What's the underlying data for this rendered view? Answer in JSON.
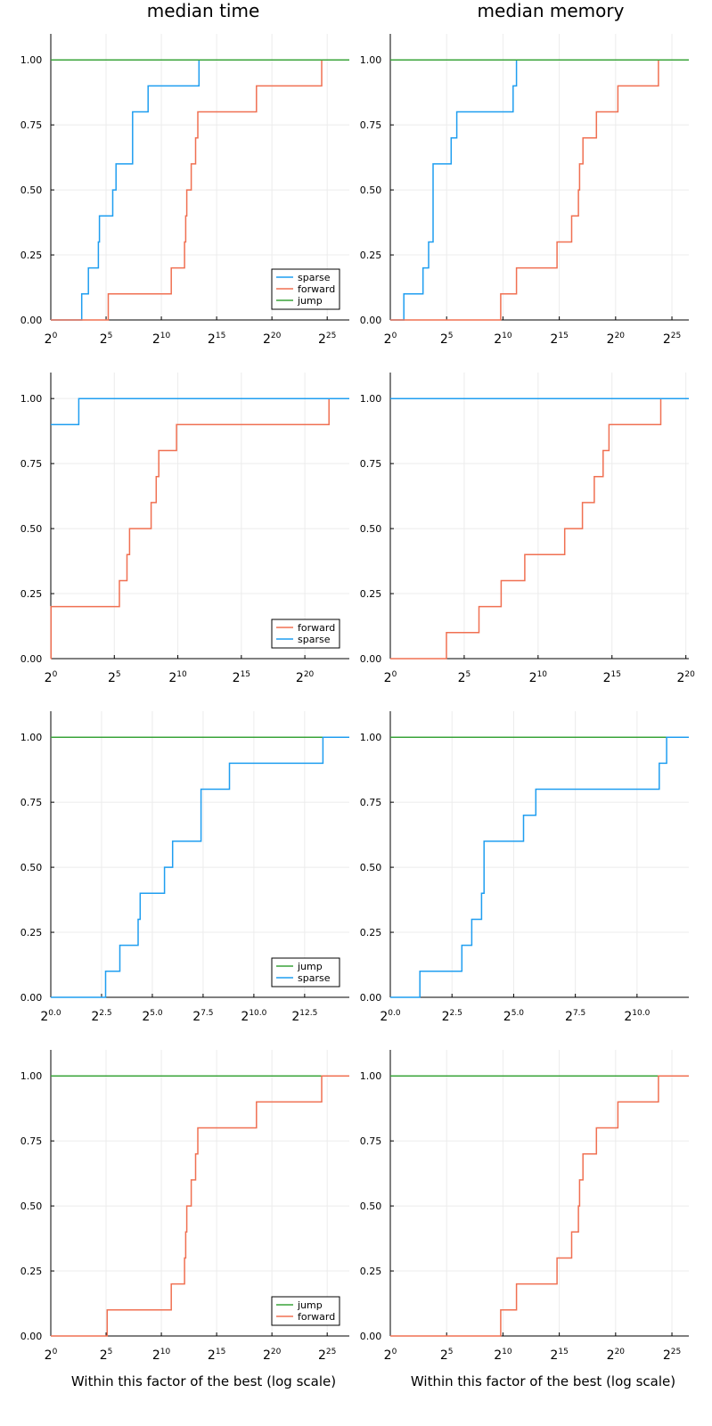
{
  "titles": [
    "median time",
    "median memory"
  ],
  "xlabel": "Within this factor of the best (log scale)",
  "colors": {
    "sparse": "#1f9ef0",
    "forward": "#f07052",
    "jump": "#3aa43a"
  },
  "chart_data": [
    {
      "type": "line",
      "title": "median time",
      "xlabel": "",
      "row": 0,
      "col": 0,
      "xscale": "log2",
      "xlim_exp": [
        0,
        27
      ],
      "ylim": [
        0,
        1.1
      ],
      "xticks_exp": [
        0,
        5,
        10,
        15,
        20,
        25
      ],
      "xtick_labels": [
        "0",
        "5",
        "10",
        "15",
        "20",
        "25"
      ],
      "yticks": [
        0,
        0.25,
        0.5,
        0.75,
        1.0
      ],
      "ytick_labels": [
        "0.00",
        "0.25",
        "0.50",
        "0.75",
        "1.00"
      ],
      "legend": {
        "position": "bottom-right",
        "entries": [
          "sparse",
          "forward",
          "jump"
        ]
      },
      "series": [
        {
          "name": "sparse",
          "color": "sparse",
          "steps": [
            [
              0,
              0
            ],
            [
              2.8,
              0.1
            ],
            [
              3.4,
              0.2
            ],
            [
              4.3,
              0.3
            ],
            [
              4.4,
              0.4
            ],
            [
              5.6,
              0.5
            ],
            [
              5.9,
              0.6
            ],
            [
              7.4,
              0.8
            ],
            [
              8.8,
              0.9
            ],
            [
              13.4,
              1.0
            ],
            [
              27,
              1.0
            ]
          ]
        },
        {
          "name": "forward",
          "color": "forward",
          "steps": [
            [
              0,
              0
            ],
            [
              5.2,
              0.1
            ],
            [
              10.9,
              0.2
            ],
            [
              12.1,
              0.3
            ],
            [
              12.2,
              0.4
            ],
            [
              12.3,
              0.5
            ],
            [
              12.7,
              0.6
            ],
            [
              13.1,
              0.7
            ],
            [
              13.3,
              0.8
            ],
            [
              18.6,
              0.9
            ],
            [
              24.5,
              1.0
            ],
            [
              27,
              1.0
            ]
          ]
        },
        {
          "name": "jump",
          "color": "jump",
          "steps": [
            [
              0,
              1.0
            ],
            [
              27,
              1.0
            ]
          ]
        }
      ]
    },
    {
      "type": "line",
      "title": "median memory",
      "xlabel": "",
      "row": 0,
      "col": 1,
      "xscale": "log2",
      "xlim_exp": [
        0,
        26.5
      ],
      "ylim": [
        0,
        1.1
      ],
      "xticks_exp": [
        0,
        5,
        10,
        15,
        20,
        25
      ],
      "xtick_labels": [
        "0",
        "5",
        "10",
        "15",
        "20",
        "25"
      ],
      "yticks": [
        0,
        0.25,
        0.5,
        0.75,
        1.0
      ],
      "ytick_labels": [
        "0.00",
        "0.25",
        "0.50",
        "0.75",
        "1.00"
      ],
      "series": [
        {
          "name": "sparse",
          "color": "sparse",
          "steps": [
            [
              0,
              0
            ],
            [
              1.2,
              0.1
            ],
            [
              2.9,
              0.2
            ],
            [
              3.4,
              0.3
            ],
            [
              3.8,
              0.6
            ],
            [
              5.4,
              0.7
            ],
            [
              5.9,
              0.8
            ],
            [
              10.9,
              0.9
            ],
            [
              11.2,
              1.0
            ],
            [
              26.5,
              1.0
            ]
          ]
        },
        {
          "name": "forward",
          "color": "forward",
          "steps": [
            [
              0,
              0
            ],
            [
              9.8,
              0.1
            ],
            [
              11.2,
              0.2
            ],
            [
              14.8,
              0.3
            ],
            [
              16.1,
              0.4
            ],
            [
              16.7,
              0.5
            ],
            [
              16.8,
              0.6
            ],
            [
              17.1,
              0.7
            ],
            [
              18.3,
              0.8
            ],
            [
              20.2,
              0.9
            ],
            [
              23.8,
              1.0
            ],
            [
              26.5,
              1.0
            ]
          ]
        },
        {
          "name": "jump",
          "color": "jump",
          "steps": [
            [
              0,
              1.0
            ],
            [
              26.5,
              1.0
            ]
          ]
        }
      ]
    },
    {
      "type": "line",
      "title": "",
      "xlabel": "",
      "row": 1,
      "col": 0,
      "xscale": "log2",
      "xlim_exp": [
        0,
        23.5
      ],
      "ylim": [
        0,
        1.1
      ],
      "xticks_exp": [
        0,
        5,
        10,
        15,
        20
      ],
      "xtick_labels": [
        "0",
        "5",
        "10",
        "15",
        "20"
      ],
      "yticks": [
        0,
        0.25,
        0.5,
        0.75,
        1.0
      ],
      "ytick_labels": [
        "0.00",
        "0.25",
        "0.50",
        "0.75",
        "1.00"
      ],
      "legend": {
        "position": "bottom-right",
        "entries": [
          "forward",
          "sparse"
        ]
      },
      "series": [
        {
          "name": "forward",
          "color": "forward",
          "steps": [
            [
              0,
              0
            ],
            [
              0.02,
              0.2
            ],
            [
              5.4,
              0.3
            ],
            [
              6.0,
              0.4
            ],
            [
              6.2,
              0.5
            ],
            [
              7.9,
              0.6
            ],
            [
              8.3,
              0.7
            ],
            [
              8.5,
              0.8
            ],
            [
              9.9,
              0.9
            ],
            [
              21.9,
              1.0
            ],
            [
              23.5,
              1.0
            ]
          ]
        },
        {
          "name": "sparse",
          "color": "sparse",
          "steps": [
            [
              0,
              0.9
            ],
            [
              2.2,
              1.0
            ],
            [
              23.5,
              1.0
            ]
          ]
        }
      ]
    },
    {
      "type": "line",
      "title": "",
      "xlabel": "",
      "row": 1,
      "col": 1,
      "xscale": "log2",
      "xlim_exp": [
        0,
        20.2
      ],
      "ylim": [
        0,
        1.1
      ],
      "xticks_exp": [
        0,
        5,
        10,
        15,
        20
      ],
      "xtick_labels": [
        "0",
        "5",
        "10",
        "15",
        "20"
      ],
      "yticks": [
        0,
        0.25,
        0.5,
        0.75,
        1.0
      ],
      "ytick_labels": [
        "0.00",
        "0.25",
        "0.50",
        "0.75",
        "1.00"
      ],
      "series": [
        {
          "name": "forward",
          "color": "forward",
          "steps": [
            [
              0,
              0
            ],
            [
              3.8,
              0.1
            ],
            [
              6.0,
              0.2
            ],
            [
              7.5,
              0.3
            ],
            [
              9.1,
              0.4
            ],
            [
              11.8,
              0.5
            ],
            [
              13.0,
              0.6
            ],
            [
              13.8,
              0.7
            ],
            [
              14.4,
              0.8
            ],
            [
              14.8,
              0.9
            ],
            [
              18.3,
              1.0
            ],
            [
              20.2,
              1.0
            ]
          ]
        },
        {
          "name": "sparse",
          "color": "sparse",
          "steps": [
            [
              0,
              1.0
            ],
            [
              20.2,
              1.0
            ]
          ]
        }
      ]
    },
    {
      "type": "line",
      "title": "",
      "xlabel": "",
      "row": 2,
      "col": 0,
      "xscale": "log2",
      "xlim_exp": [
        0,
        14.7
      ],
      "ylim": [
        0,
        1.1
      ],
      "xticks_exp": [
        0,
        2.5,
        5,
        7.5,
        10,
        12.5
      ],
      "xtick_labels": [
        "0.0",
        "2.5",
        "5.0",
        "7.5",
        "10.0",
        "12.5"
      ],
      "yticks": [
        0,
        0.25,
        0.5,
        0.75,
        1.0
      ],
      "ytick_labels": [
        "0.00",
        "0.25",
        "0.50",
        "0.75",
        "1.00"
      ],
      "legend": {
        "position": "bottom-right",
        "entries": [
          "jump",
          "sparse"
        ]
      },
      "series": [
        {
          "name": "jump",
          "color": "jump",
          "steps": [
            [
              0,
              1.0
            ],
            [
              14.7,
              1.0
            ]
          ]
        },
        {
          "name": "sparse",
          "color": "sparse",
          "steps": [
            [
              0,
              0
            ],
            [
              2.7,
              0.1
            ],
            [
              3.4,
              0.2
            ],
            [
              4.3,
              0.3
            ],
            [
              4.4,
              0.4
            ],
            [
              5.6,
              0.5
            ],
            [
              6.0,
              0.6
            ],
            [
              7.4,
              0.8
            ],
            [
              8.8,
              0.9
            ],
            [
              13.4,
              1.0
            ],
            [
              14.7,
              1.0
            ]
          ]
        }
      ]
    },
    {
      "type": "line",
      "title": "",
      "xlabel": "",
      "row": 2,
      "col": 1,
      "xscale": "log2",
      "xlim_exp": [
        0,
        12.1
      ],
      "ylim": [
        0,
        1.1
      ],
      "xticks_exp": [
        0,
        2.5,
        5,
        7.5,
        10
      ],
      "xtick_labels": [
        "0.0",
        "2.5",
        "5.0",
        "7.5",
        "10.0"
      ],
      "yticks": [
        0,
        0.25,
        0.5,
        0.75,
        1.0
      ],
      "ytick_labels": [
        "0.00",
        "0.25",
        "0.50",
        "0.75",
        "1.00"
      ],
      "series": [
        {
          "name": "jump",
          "color": "jump",
          "steps": [
            [
              0,
              1.0
            ],
            [
              12.1,
              1.0
            ]
          ]
        },
        {
          "name": "sparse",
          "color": "sparse",
          "steps": [
            [
              0,
              0
            ],
            [
              1.2,
              0.1
            ],
            [
              2.9,
              0.2
            ],
            [
              3.3,
              0.3
            ],
            [
              3.7,
              0.4
            ],
            [
              3.8,
              0.6
            ],
            [
              5.4,
              0.7
            ],
            [
              5.9,
              0.8
            ],
            [
              10.9,
              0.9
            ],
            [
              11.2,
              1.0
            ],
            [
              12.1,
              1.0
            ]
          ]
        }
      ]
    },
    {
      "type": "line",
      "title": "",
      "xlabel": "Within this factor of the best (log scale)",
      "row": 3,
      "col": 0,
      "xscale": "log2",
      "xlim_exp": [
        0,
        27
      ],
      "ylim": [
        0,
        1.1
      ],
      "xticks_exp": [
        0,
        5,
        10,
        15,
        20,
        25
      ],
      "xtick_labels": [
        "0",
        "5",
        "10",
        "15",
        "20",
        "25"
      ],
      "yticks": [
        0,
        0.25,
        0.5,
        0.75,
        1.0
      ],
      "ytick_labels": [
        "0.00",
        "0.25",
        "0.50",
        "0.75",
        "1.00"
      ],
      "legend": {
        "position": "bottom-right",
        "entries": [
          "jump",
          "forward"
        ]
      },
      "series": [
        {
          "name": "jump",
          "color": "jump",
          "steps": [
            [
              0,
              1.0
            ],
            [
              27,
              1.0
            ]
          ]
        },
        {
          "name": "forward",
          "color": "forward",
          "steps": [
            [
              0,
              0
            ],
            [
              5.1,
              0.1
            ],
            [
              10.9,
              0.2
            ],
            [
              12.1,
              0.3
            ],
            [
              12.2,
              0.4
            ],
            [
              12.3,
              0.5
            ],
            [
              12.7,
              0.6
            ],
            [
              13.1,
              0.7
            ],
            [
              13.3,
              0.8
            ],
            [
              18.6,
              0.9
            ],
            [
              24.5,
              1.0
            ],
            [
              27,
              1.0
            ]
          ]
        }
      ]
    },
    {
      "type": "line",
      "title": "",
      "xlabel": "Within this factor of the best (log scale)",
      "row": 3,
      "col": 1,
      "xscale": "log2",
      "xlim_exp": [
        0,
        26.5
      ],
      "ylim": [
        0,
        1.1
      ],
      "xticks_exp": [
        0,
        5,
        10,
        15,
        20,
        25
      ],
      "xtick_labels": [
        "0",
        "5",
        "10",
        "15",
        "20",
        "25"
      ],
      "yticks": [
        0,
        0.25,
        0.5,
        0.75,
        1.0
      ],
      "ytick_labels": [
        "0.00",
        "0.25",
        "0.50",
        "0.75",
        "1.00"
      ],
      "series": [
        {
          "name": "jump",
          "color": "jump",
          "steps": [
            [
              0,
              1.0
            ],
            [
              26.5,
              1.0
            ]
          ]
        },
        {
          "name": "forward",
          "color": "forward",
          "steps": [
            [
              0,
              0
            ],
            [
              9.8,
              0.1
            ],
            [
              11.2,
              0.2
            ],
            [
              14.8,
              0.3
            ],
            [
              16.1,
              0.4
            ],
            [
              16.7,
              0.5
            ],
            [
              16.8,
              0.6
            ],
            [
              17.1,
              0.7
            ],
            [
              18.3,
              0.8
            ],
            [
              20.2,
              0.9
            ],
            [
              23.8,
              1.0
            ],
            [
              26.5,
              1.0
            ]
          ]
        }
      ]
    }
  ]
}
